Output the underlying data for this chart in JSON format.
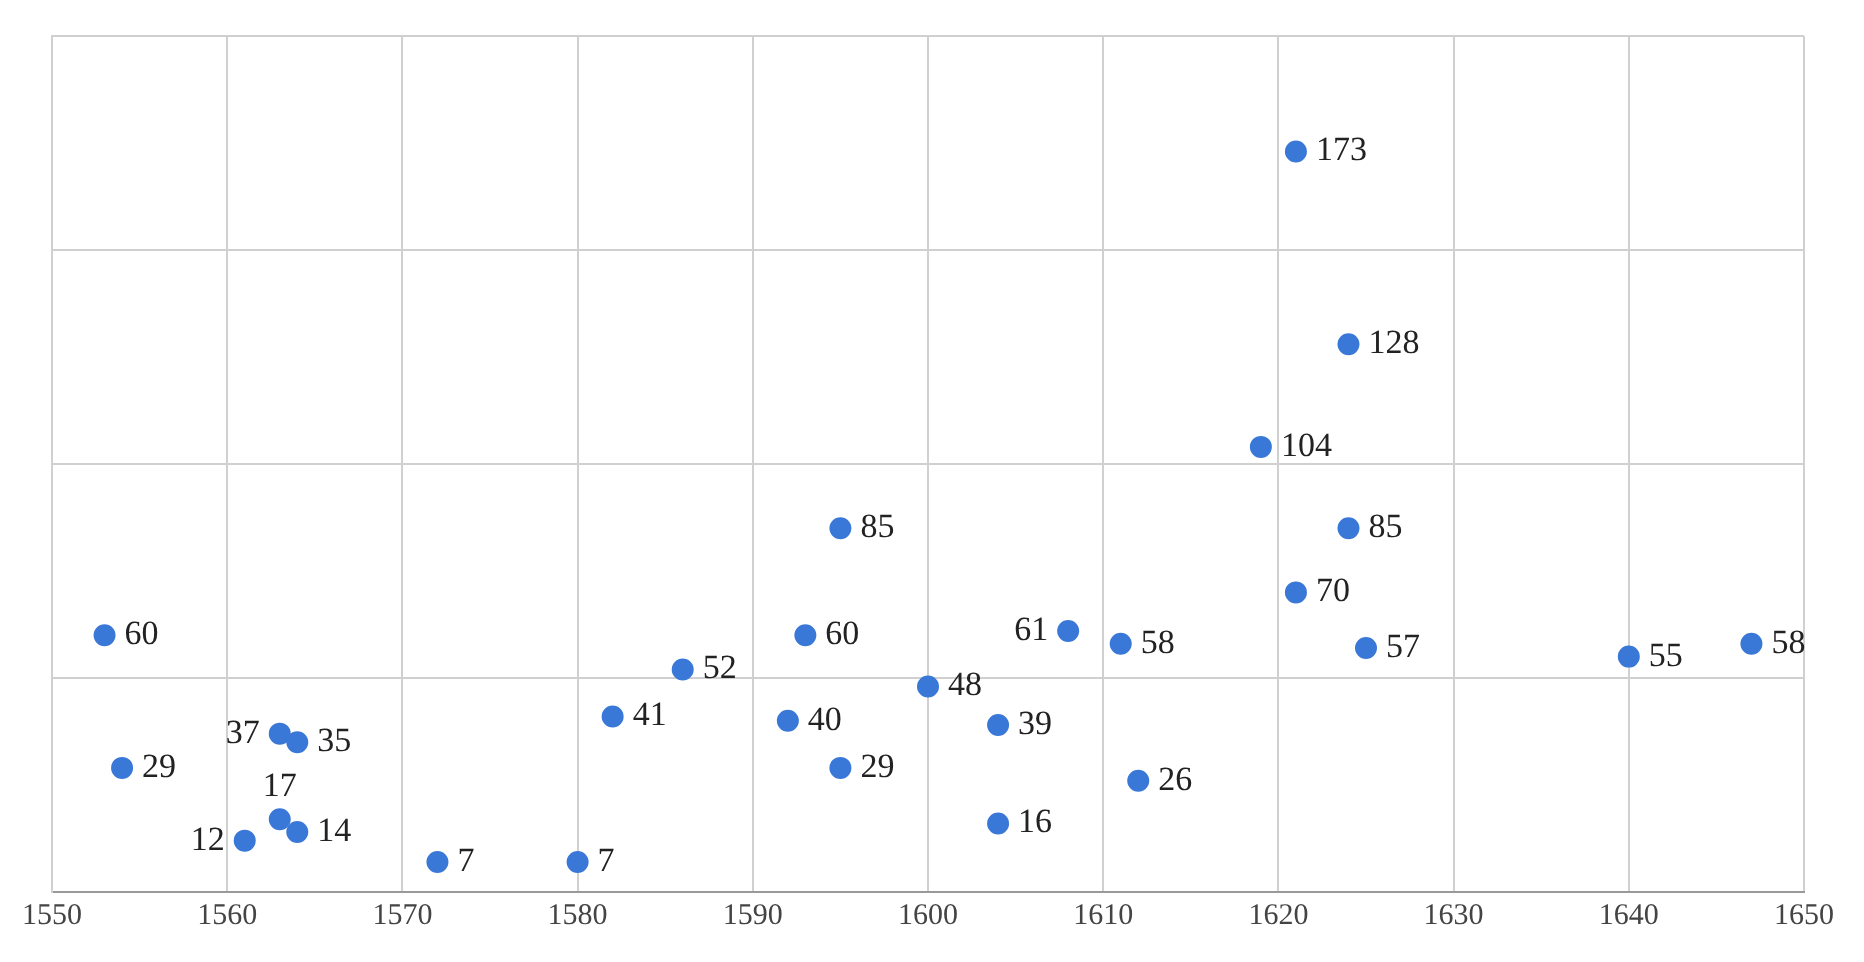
{
  "chart_data": {
    "type": "scatter",
    "x": [
      1553,
      1554,
      1561,
      1563,
      1564,
      1563,
      1564,
      1572,
      1580,
      1582,
      1586,
      1592,
      1593,
      1595,
      1595,
      1600,
      1604,
      1604,
      1608,
      1611,
      1612,
      1619,
      1621,
      1621,
      1624,
      1624,
      1625,
      1640,
      1647
    ],
    "values": [
      60,
      29,
      12,
      37,
      35,
      17,
      14,
      7,
      7,
      41,
      52,
      40,
      60,
      85,
      29,
      48,
      39,
      16,
      61,
      58,
      26,
      104,
      173,
      70,
      128,
      85,
      57,
      55,
      58
    ],
    "color": "#3a78d8",
    "marker": "circle",
    "data_labels": true,
    "xlim": [
      1550,
      1650
    ],
    "xticks": [
      1550,
      1560,
      1570,
      1580,
      1590,
      1600,
      1610,
      1620,
      1630,
      1640,
      1650
    ],
    "ylim": [
      0,
      200
    ],
    "yticks": [
      {
        "value": 0,
        "label": null
      },
      {
        "value": 50,
        "label": null
      },
      {
        "value": 100,
        "label": null
      },
      {
        "value": 150,
        "label": null
      },
      {
        "value": 200,
        "label": null
      }
    ],
    "tick_labels": "x",
    "grid": true,
    "legend": false
  }
}
